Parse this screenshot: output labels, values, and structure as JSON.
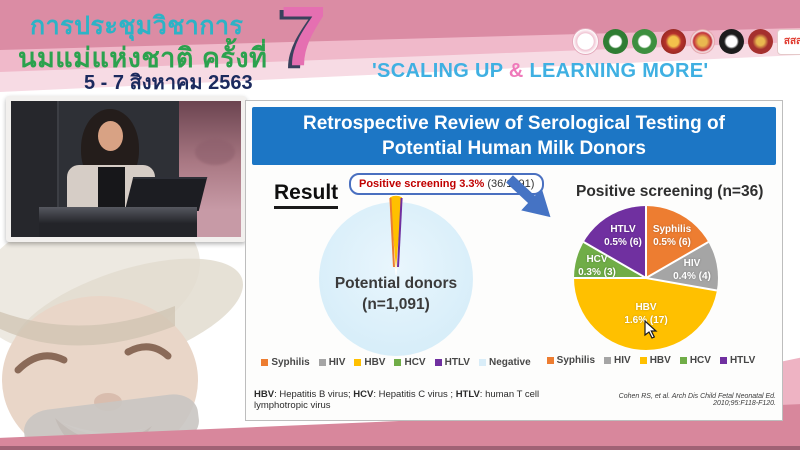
{
  "header": {
    "title_line1": "การประชุมวิชาการ",
    "title_line2": "นมแม่แห่งชาติ ครั้งที่",
    "date_line": "5 - 7 สิงหาคม 2563",
    "edition_number": "7",
    "tagline_prefix": "'SCALING UP ",
    "tagline_amp": "&",
    "tagline_suffix": " LEARNING MORE'",
    "sss_logo_text": "สสส",
    "logo_names": [
      "breastfeeding-foundation-logo",
      "green-medical-council-logo",
      "green-health-dept-logo",
      "royal-college-emblem-logo",
      "royal-institute-emblem-logo",
      "pediatric-society-emblem-logo",
      "medical-association-emblem-logo",
      "thai-health-sss-logo"
    ],
    "colors": {
      "rose_band": "#db8ca4",
      "light_band": "#f7dbe4",
      "title_teal": "#2cb3c6",
      "title_green": "#2ba24e",
      "date_navy": "#1b2a5e",
      "seven_pink": "#e56fb1",
      "tagline_blue": "#3fb0e2",
      "amp_pink": "#ef79ba"
    }
  },
  "slide": {
    "title_line1": "Retrospective Review of Serological Testing of",
    "title_line2": "Potential Human Milk Donors",
    "result_label": "Result",
    "callout": {
      "highlight": "Positive screening 3.3%",
      "detail": "(36/1091)"
    },
    "footnote": {
      "abbr1": "HBV",
      "text1": ": Hepatitis B virus; ",
      "abbr2": "HCV",
      "text2": ": Hepatitis C virus ; ",
      "abbr3": "HTLV",
      "text3": ": human T cell lymphotropic virus"
    },
    "citation": "Cohen RS, et al. Arch Dis Child Fetal Neonatal Ed. 2010;95:F118-F120.",
    "colors": {
      "banner_blue": "#1c76c5",
      "callout_border": "#4a70c0",
      "highlight_red": "#c00000",
      "arrow_blue": "#4573c4"
    }
  },
  "chart_data": [
    {
      "type": "pie",
      "title": "Potential donors (n=1,091)",
      "label_line1": "Potential donors",
      "label_line2": "(n=1,091)",
      "n_total": 1091,
      "annotation": "Positive screening 3.3% (36/1091)",
      "positive_count": 36,
      "positive_pct": 3.3,
      "slices": [
        {
          "label": "Syphilis",
          "value": 6,
          "color": "#ed7d31"
        },
        {
          "label": "HIV",
          "value": 4,
          "color": "#a5a5a5"
        },
        {
          "label": "HBV",
          "value": 17,
          "color": "#ffc000"
        },
        {
          "label": "HCV",
          "value": 3,
          "color": "#70ad47"
        },
        {
          "label": "HTLV",
          "value": 6,
          "color": "#7030a0"
        },
        {
          "label": "Negative",
          "value": 1055,
          "color": "#d9edf8"
        }
      ],
      "legend_position": "bottom"
    },
    {
      "type": "pie",
      "title": "Positive screening (n=36)",
      "n_total": 36,
      "slices": [
        {
          "label": "Syphilis",
          "value": 6,
          "pct_label": "0.5% (6)",
          "color": "#ed7d31"
        },
        {
          "label": "HIV",
          "value": 4,
          "pct_label": "0.4% (4)",
          "color": "#a5a5a5"
        },
        {
          "label": "HBV",
          "value": 17,
          "pct_label": "1.6% (17)",
          "color": "#ffc000"
        },
        {
          "label": "HCV",
          "value": 3,
          "pct_label": "0.3% (3)",
          "color": "#70ad47"
        },
        {
          "label": "HTLV",
          "value": 6,
          "pct_label": "0.5% (6)",
          "color": "#7030a0"
        }
      ],
      "legend_position": "bottom"
    }
  ]
}
